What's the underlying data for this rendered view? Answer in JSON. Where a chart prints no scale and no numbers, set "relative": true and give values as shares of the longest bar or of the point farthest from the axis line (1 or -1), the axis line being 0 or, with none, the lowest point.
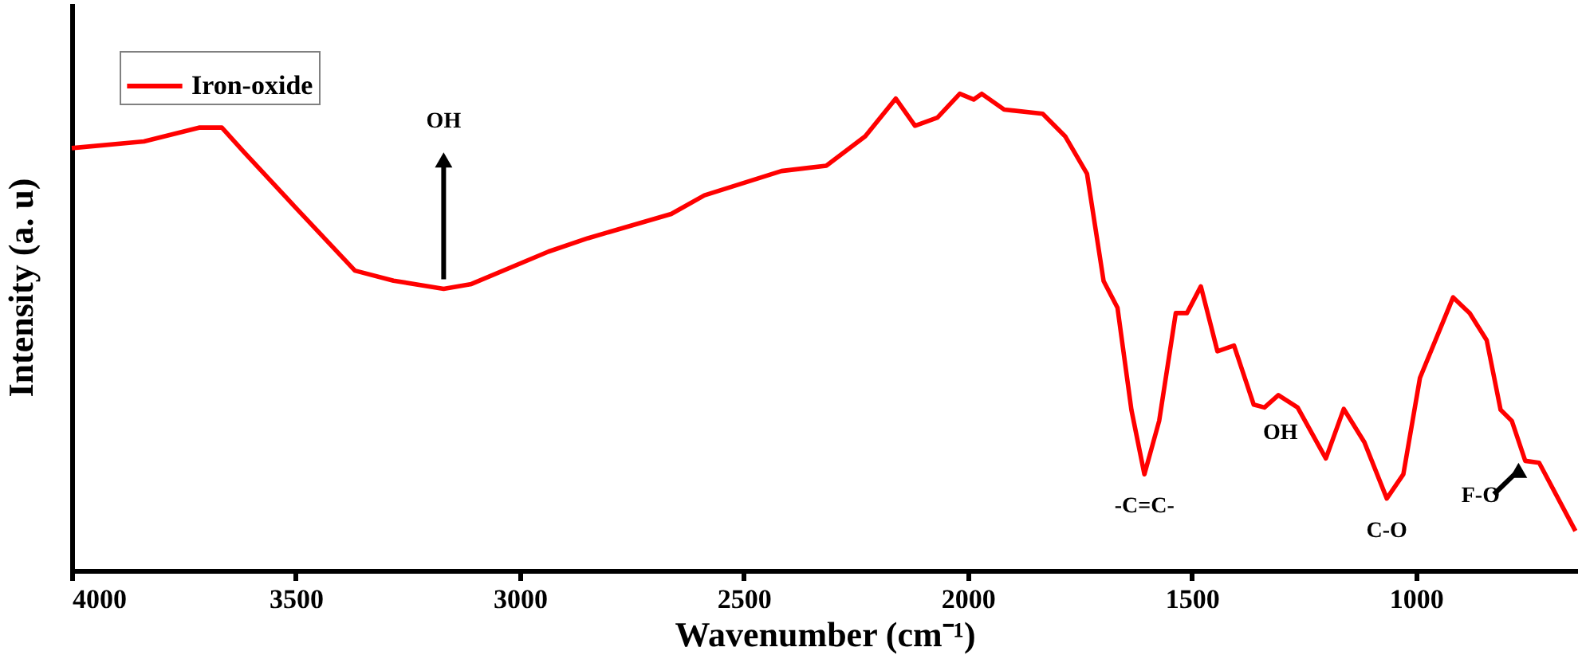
{
  "chart_data": {
    "type": "line",
    "relative": true,
    "xlabel": "Wavenumber (cm⁻¹)",
    "ylabel": "Intensity (a. u)",
    "xlim": [
      4000,
      640
    ],
    "xticks": [
      4000,
      3500,
      3000,
      2500,
      2000,
      1500,
      1000
    ],
    "tick_labels": "x",
    "grid": false,
    "legend": "top left",
    "line_style": "solid",
    "marker": "none",
    "series": [
      {
        "name": "Iron-oxide",
        "color": "#ff0000",
        "x": [
          4000,
          3839,
          3716,
          3665,
          3616,
          3504,
          3368,
          3282,
          3170,
          3108,
          2936,
          2848,
          2662,
          2588,
          2416,
          2316,
          2229,
          2161,
          2118,
          2068,
          2018,
          1987,
          1969,
          1919,
          1833,
          1783,
          1734,
          1697,
          1666,
          1635,
          1606,
          1573,
          1536,
          1511,
          1480,
          1443,
          1406,
          1362,
          1338,
          1307,
          1264,
          1201,
          1161,
          1115,
          1065,
          1028,
          991,
          917,
          880,
          842,
          811,
          786,
          756,
          725,
          644
        ],
        "values": [
          0.886,
          0.9,
          0.929,
          0.929,
          0.878,
          0.765,
          0.629,
          0.608,
          0.591,
          0.601,
          0.669,
          0.697,
          0.748,
          0.787,
          0.838,
          0.849,
          0.911,
          0.99,
          0.933,
          0.95,
          1.0,
          0.988,
          1.0,
          0.967,
          0.958,
          0.911,
          0.832,
          0.607,
          0.551,
          0.337,
          0.202,
          0.314,
          0.54,
          0.54,
          0.596,
          0.46,
          0.472,
          0.348,
          0.342,
          0.368,
          0.342,
          0.235,
          0.339,
          0.269,
          0.151,
          0.202,
          0.404,
          0.573,
          0.54,
          0.483,
          0.337,
          0.314,
          0.23,
          0.226,
          0.083
        ]
      }
    ],
    "annotations": [
      {
        "text": "OH",
        "x": 3170,
        "y": 0.591
      },
      {
        "text": "-C=C-",
        "x": 1606,
        "y": 0.202
      },
      {
        "text": "OH",
        "x": 1338,
        "y": 0.342
      },
      {
        "text": "C-O",
        "x": 1065,
        "y": 0.151
      },
      {
        "text": "F-O",
        "x": 756,
        "y": 0.23
      }
    ]
  }
}
